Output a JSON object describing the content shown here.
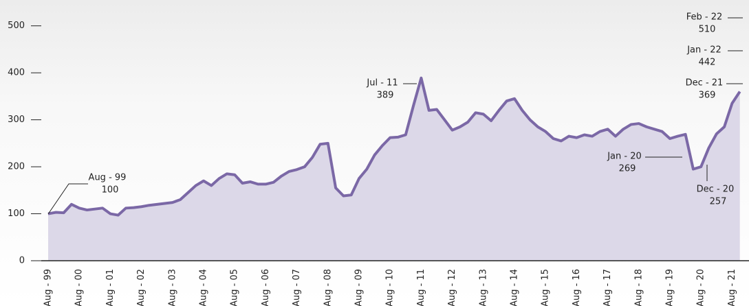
{
  "chart_data": {
    "type": "area",
    "categories": [
      "Aug - 99",
      null,
      null,
      null,
      "Aug - 00",
      null,
      null,
      null,
      "Aug - 01",
      null,
      null,
      null,
      "Aug - 02",
      null,
      null,
      null,
      "Aug - 03",
      null,
      null,
      null,
      "Aug - 04",
      null,
      null,
      null,
      "Aug - 05",
      null,
      null,
      null,
      "Aug - 06",
      null,
      null,
      null,
      "Aug - 07",
      null,
      null,
      null,
      "Aug - 08",
      null,
      null,
      null,
      "Aug - 09",
      null,
      null,
      null,
      "Aug - 10",
      null,
      null,
      null,
      "Aug - 11",
      null,
      null,
      null,
      "Aug - 12",
      null,
      null,
      null,
      "Aug - 13",
      null,
      null,
      null,
      "Aug - 14",
      null,
      null,
      null,
      "Aug - 15",
      null,
      null,
      null,
      "Aug - 16",
      null,
      null,
      null,
      "Aug - 17",
      null,
      null,
      null,
      "Aug - 18",
      null,
      null,
      null,
      "Aug - 19",
      null,
      null,
      null,
      "Aug - 20",
      null,
      null,
      null,
      "Aug - 21",
      null
    ],
    "values": [
      100,
      103,
      102,
      120,
      112,
      108,
      110,
      112,
      100,
      97,
      112,
      113,
      115,
      118,
      120,
      122,
      124,
      130,
      145,
      160,
      170,
      160,
      175,
      185,
      183,
      165,
      168,
      163,
      163,
      167,
      180,
      190,
      194,
      200,
      220,
      248,
      250,
      155,
      138,
      140,
      175,
      195,
      225,
      245,
      262,
      263,
      268,
      330,
      389,
      320,
      322,
      300,
      278,
      285,
      295,
      315,
      312,
      298,
      320,
      340,
      345,
      320,
      300,
      285,
      275,
      260,
      255,
      265,
      262,
      268,
      265,
      275,
      280,
      265,
      280,
      290,
      292,
      285,
      280,
      275,
      260,
      265,
      269,
      195,
      200,
      240,
      270,
      285,
      335,
      360
    ],
    "color": "#7b68a6",
    "fill": "#dcd8e8",
    "ylim": [
      0,
      555
    ],
    "yticks": [
      0,
      100,
      200,
      300,
      400,
      500
    ],
    "annotations": [
      {
        "label": "Aug - 99",
        "value": 100
      },
      {
        "label": "Jul - 11",
        "value": 389
      },
      {
        "label": "Jan - 20",
        "value": 269
      },
      {
        "label": "Dec - 20",
        "value": 257
      },
      {
        "label": "Dec - 21",
        "value": 369
      },
      {
        "label": "Jan - 22",
        "value": 442
      },
      {
        "label": "Feb - 22",
        "value": 510
      }
    ]
  }
}
